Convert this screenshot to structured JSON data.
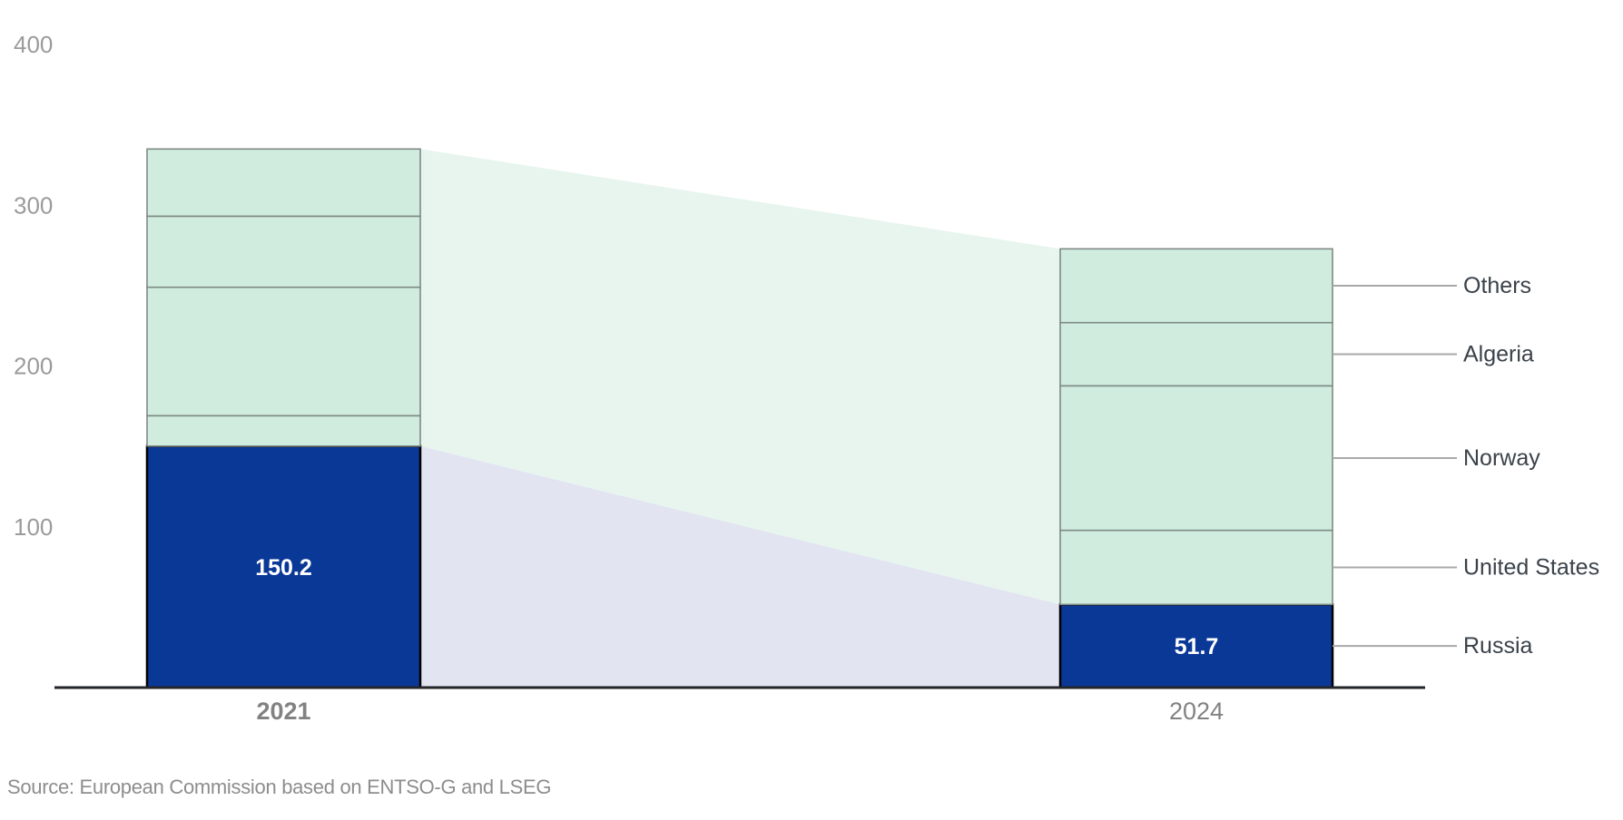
{
  "page": {
    "background": "#ffffff"
  },
  "source_note": "Source: European Commission based on ENTSO-G and LSEG",
  "chart_data": {
    "type": "bar",
    "subtype": "stacked-columns-with-slope-bands",
    "title": "",
    "categories": [
      "2021",
      "2024"
    ],
    "category_label_weights": [
      "bold",
      "normal"
    ],
    "stack_order_bottom_to_top": [
      "Russia",
      "United States",
      "Norway",
      "Algeria",
      "Others"
    ],
    "series": [
      {
        "name": "Russia",
        "values": [
          150.2,
          51.7
        ],
        "color": "#0a3897",
        "value_labels": [
          "150.2",
          "51.7"
        ]
      },
      {
        "name": "United States",
        "values": [
          18.9,
          46.1
        ],
        "color": "#cfecde"
      },
      {
        "name": "Norway",
        "values": [
          79.9,
          89.9
        ],
        "color": "#cfecde"
      },
      {
        "name": "Algeria",
        "values": [
          44.2,
          39.3
        ],
        "color": "#cfecde"
      },
      {
        "name": "Others",
        "values": [
          41.8,
          45.9
        ],
        "color": "#cfecde"
      }
    ],
    "totals": [
      335.0,
      272.9
    ],
    "y_ticks": [
      100,
      200,
      300,
      400
    ],
    "ylim": [
      0,
      428
    ],
    "grid": false,
    "legend_position": "right-leader-lines",
    "legend_labels_top_to_bottom": [
      "Others",
      "Algeria",
      "Norway",
      "United States",
      "Russia"
    ],
    "colors": {
      "russia_fill": "#0a3897",
      "other_fill": "#cfecde",
      "band_upper": "#e7f5ee",
      "band_lower": "#e2e4f1",
      "segment_border": "#7f8a85",
      "russia_border": "#000000",
      "axis": "#22252a",
      "tick_label": "#9b9b9b",
      "year_label": "#828282",
      "category_label": "#3a424a",
      "leader_line": "#a8a8a8",
      "value_label": "#ffffff",
      "source": "#8d8d8d"
    }
  }
}
